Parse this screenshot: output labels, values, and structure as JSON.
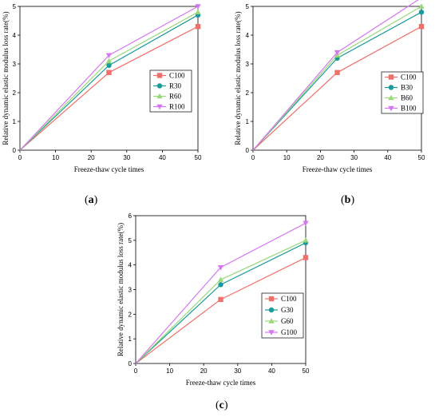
{
  "panels": [
    {
      "caption": "(a)",
      "caption_letter": "a",
      "chart_data": {
        "type": "line",
        "x": [
          0,
          25,
          50
        ],
        "xlabel": "Freeze-thaw cycle times",
        "ylabel": "Relative dynamic elastic modulus loss rate(%)",
        "xlim": [
          0,
          50
        ],
        "ylim": [
          0,
          5
        ],
        "xticks": [
          "0",
          "10",
          "20",
          "30",
          "40",
          "50"
        ],
        "yticks": [
          "0",
          "1",
          "2",
          "3",
          "4",
          "5"
        ],
        "legend_position": "center-right",
        "series": [
          {
            "name": "C100",
            "values": [
              0,
              2.7,
              4.3
            ],
            "color": "#f0706a",
            "marker": "square"
          },
          {
            "name": "R30",
            "values": [
              0,
              2.95,
              4.7
            ],
            "color": "#1a9a9a",
            "marker": "circle"
          },
          {
            "name": "R60",
            "values": [
              0,
              3.1,
              4.8
            ],
            "color": "#9ad87a",
            "marker": "triangle-up"
          },
          {
            "name": "R100",
            "values": [
              0,
              3.3,
              5.0
            ],
            "color": "#d677f0",
            "marker": "triangle-down"
          }
        ]
      }
    },
    {
      "caption": "(b)",
      "caption_letter": "b",
      "chart_data": {
        "type": "line",
        "x": [
          0,
          25,
          50
        ],
        "xlabel": "Freeze-thaw cycle times",
        "ylabel": "Relative dynamic elastic modulus loss rate(%)",
        "xlim": [
          0,
          50
        ],
        "ylim": [
          0,
          5
        ],
        "xticks": [
          "0",
          "10",
          "20",
          "30",
          "40",
          "50"
        ],
        "yticks": [
          "0",
          "1",
          "2",
          "3",
          "4",
          "5"
        ],
        "legend_position": "center-right",
        "series": [
          {
            "name": "C100",
            "values": [
              0,
              2.7,
              4.3
            ],
            "color": "#f0706a",
            "marker": "square"
          },
          {
            "name": "B30",
            "values": [
              0,
              3.2,
              4.8
            ],
            "color": "#1a9a9a",
            "marker": "circle"
          },
          {
            "name": "B60",
            "values": [
              0,
              3.3,
              5.0
            ],
            "color": "#9ad87a",
            "marker": "triangle-up"
          },
          {
            "name": "B100",
            "values": [
              0,
              3.4,
              5.3
            ],
            "color": "#d677f0",
            "marker": "triangle-down"
          }
        ]
      }
    },
    {
      "caption": "(c)",
      "caption_letter": "c",
      "chart_data": {
        "type": "line",
        "x": [
          0,
          25,
          50
        ],
        "xlabel": "Freeze-thaw cycle times",
        "ylabel": "Relative dynamic elastic modulus loss rate(%)",
        "xlim": [
          0,
          50
        ],
        "ylim": [
          0,
          6
        ],
        "xticks": [
          "0",
          "10",
          "20",
          "30",
          "40",
          "50"
        ],
        "yticks": [
          "0",
          "1",
          "2",
          "3",
          "4",
          "5",
          "6"
        ],
        "legend_position": "center-right",
        "series": [
          {
            "name": "C100",
            "values": [
              0,
              2.6,
              4.3
            ],
            "color": "#f0706a",
            "marker": "square"
          },
          {
            "name": "G30",
            "values": [
              0,
              3.2,
              4.9
            ],
            "color": "#1a9a9a",
            "marker": "circle"
          },
          {
            "name": "G60",
            "values": [
              0,
              3.4,
              5.0
            ],
            "color": "#9ad87a",
            "marker": "triangle-up"
          },
          {
            "name": "G100",
            "values": [
              0,
              3.9,
              5.7
            ],
            "color": "#d677f0",
            "marker": "triangle-down"
          }
        ]
      }
    }
  ]
}
